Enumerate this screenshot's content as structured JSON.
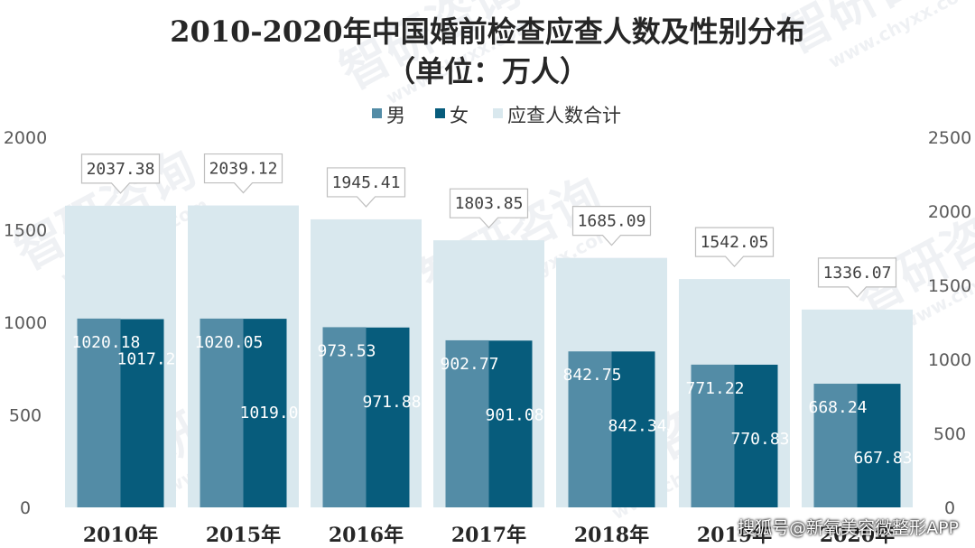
{
  "chart_data": {
    "type": "bar",
    "title_line1": "2010-2020年中国婚前检查应查人数及性别分布",
    "title_line2": "（单位：万人）",
    "categories": [
      "2010年",
      "2015年",
      "2016年",
      "2017年",
      "2018年",
      "2019年",
      "2020年"
    ],
    "series": [
      {
        "name": "男",
        "axis": "left",
        "values": [
          1020.18,
          1020.05,
          973.53,
          902.77,
          842.75,
          771.22,
          668.24
        ],
        "color": "#538ca6"
      },
      {
        "name": "女",
        "axis": "left",
        "values": [
          1017.2,
          1019.07,
          971.88,
          901.08,
          842.34,
          770.83,
          667.83
        ],
        "color": "#075c7c"
      },
      {
        "name": "应查人数合计",
        "axis": "right",
        "values": [
          2037.38,
          2039.12,
          1945.41,
          1803.85,
          1685.09,
          1542.05,
          1336.07
        ],
        "color": "#d9e8ee"
      }
    ],
    "left_axis": {
      "range": [
        0,
        2000
      ],
      "ticks": [
        "0",
        "500",
        "1000",
        "1500",
        "2000"
      ]
    },
    "right_axis": {
      "range": [
        0,
        2500
      ],
      "ticks": [
        "0",
        "500",
        "1000",
        "1500",
        "2000",
        "2500"
      ]
    },
    "legend_position": "top-center",
    "grid": false
  },
  "watermark": {
    "brand": "智研咨询",
    "site": "www.chyxx.com"
  },
  "credit": "搜狐号@新氧美容微整形APP"
}
